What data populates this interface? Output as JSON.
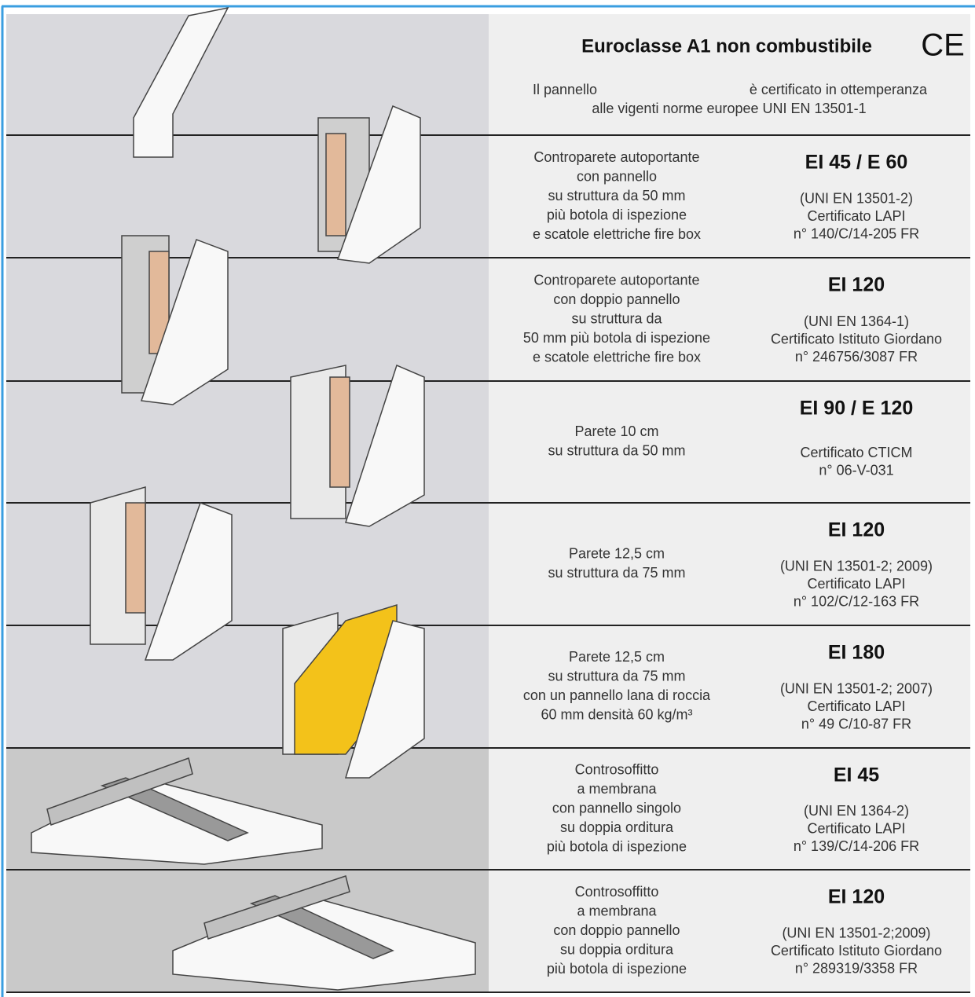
{
  "header": {
    "title": "Euroclasse A1 non combustibile",
    "mark": "CE",
    "description": [
      "Il pannello",
      "è certificato in ottemperanza",
      "alle vigenti norme europee UNI EN 13501-1"
    ]
  },
  "rows": [
    {
      "description": [
        "Controparete autoportante",
        "con pannello",
        "su struttura da 50 mm",
        "più botola di ispezione",
        "e scatole elettriche fire box"
      ],
      "rating": "EI 45 / E 60",
      "certification": [
        "(UNI EN 13501-2)",
        "Certificato LAPI",
        "n° 140/C/14-205 FR"
      ]
    },
    {
      "description": [
        "Controparete autoportante",
        "con doppio pannello",
        "su struttura da",
        "50 mm più botola di ispezione",
        "e scatole elettriche fire box"
      ],
      "rating": "EI 120",
      "certification": [
        "(UNI EN 1364-1)",
        "Certificato Istituto Giordano",
        "n° 246756/3087 FR"
      ]
    },
    {
      "description": [
        "Parete 10 cm",
        "su struttura da 50 mm"
      ],
      "rating": "EI 90 / E 120",
      "certification": [
        "Certificato CTICM",
        "n° 06-V-031"
      ]
    },
    {
      "description": [
        "Parete 12,5 cm",
        "su struttura da 75 mm"
      ],
      "rating": "EI 120",
      "certification": [
        "(UNI EN 13501-2; 2009)",
        "Certificato LAPI",
        "n° 102/C/12-163 FR"
      ]
    },
    {
      "description": [
        "Parete 12,5 cm",
        "su struttura da 75 mm",
        "con un pannello lana di roccia",
        "60 mm densità 60 kg/m³"
      ],
      "rating": "EI 180",
      "certification": [
        "(UNI EN 13501-2; 2007)",
        "Certificato LAPI",
        "n° 49 C/10-87 FR"
      ]
    },
    {
      "description": [
        "Controsoffitto",
        "a membrana",
        "con pannello singolo",
        "su doppia orditura",
        "più botola di ispezione"
      ],
      "rating": "EI 45",
      "certification": [
        "(UNI EN 1364-2)",
        "Certificato LAPI",
        "n° 139/C/14-206 FR"
      ]
    },
    {
      "description": [
        "Controsoffitto",
        "a membrana",
        "con doppio pannello",
        "su doppia orditura",
        "più botola di ispezione"
      ],
      "rating": "EI 120",
      "certification": [
        "(UNI EN 13501-2;2009)",
        "Certificato Istituto Giordano",
        "n° 289319/3358 FR"
      ]
    }
  ]
}
